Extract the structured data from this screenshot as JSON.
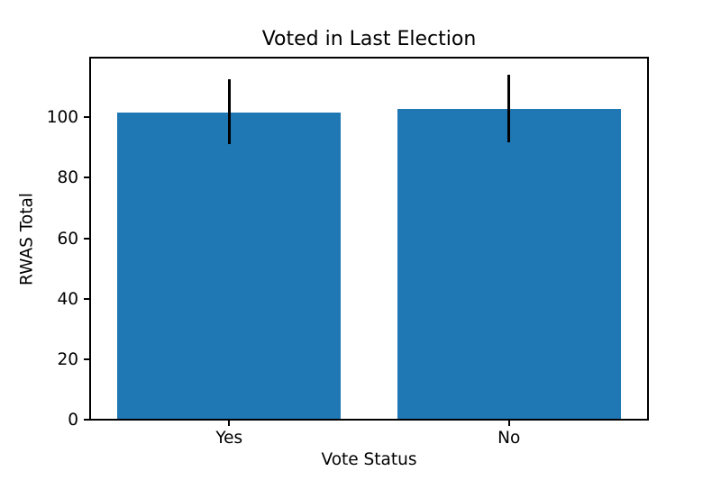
{
  "chart_data": {
    "type": "bar",
    "title": "Voted in Last Election",
    "xlabel": "Vote Status",
    "ylabel": "RWAS Total",
    "categories": [
      "Yes",
      "No"
    ],
    "values": [
      101.5,
      102.8
    ],
    "error_low": [
      91.0,
      91.6
    ],
    "error_high": [
      112.5,
      114.0
    ],
    "ylim": [
      0,
      120
    ],
    "yticks": [
      0,
      20,
      40,
      60,
      80,
      100
    ],
    "bar_color": "#1f77b4",
    "error_color": "#000000",
    "grid": false,
    "legend": false
  }
}
